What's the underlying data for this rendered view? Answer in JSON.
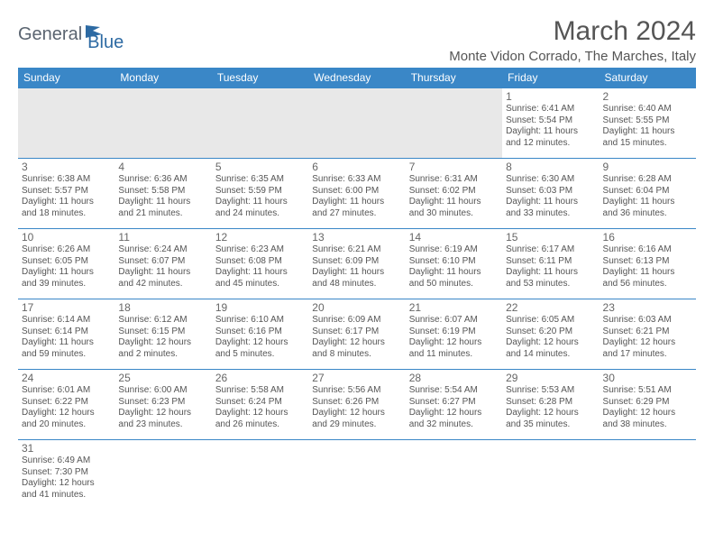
{
  "logo": {
    "general": "General",
    "blue": "Blue"
  },
  "header": {
    "title": "March 2024",
    "location": "Monte Vidon Corrado, The Marches, Italy"
  },
  "colors": {
    "header_bg": "#3a87c7",
    "header_fg": "#ffffff",
    "row_border": "#3a87c7",
    "blank_bg": "#e8e8e8",
    "text": "#555555"
  },
  "weekdays": [
    "Sunday",
    "Monday",
    "Tuesday",
    "Wednesday",
    "Thursday",
    "Friday",
    "Saturday"
  ],
  "days": {
    "1": {
      "sr": "Sunrise: 6:41 AM",
      "ss": "Sunset: 5:54 PM",
      "dl1": "Daylight: 11 hours",
      "dl2": "and 12 minutes."
    },
    "2": {
      "sr": "Sunrise: 6:40 AM",
      "ss": "Sunset: 5:55 PM",
      "dl1": "Daylight: 11 hours",
      "dl2": "and 15 minutes."
    },
    "3": {
      "sr": "Sunrise: 6:38 AM",
      "ss": "Sunset: 5:57 PM",
      "dl1": "Daylight: 11 hours",
      "dl2": "and 18 minutes."
    },
    "4": {
      "sr": "Sunrise: 6:36 AM",
      "ss": "Sunset: 5:58 PM",
      "dl1": "Daylight: 11 hours",
      "dl2": "and 21 minutes."
    },
    "5": {
      "sr": "Sunrise: 6:35 AM",
      "ss": "Sunset: 5:59 PM",
      "dl1": "Daylight: 11 hours",
      "dl2": "and 24 minutes."
    },
    "6": {
      "sr": "Sunrise: 6:33 AM",
      "ss": "Sunset: 6:00 PM",
      "dl1": "Daylight: 11 hours",
      "dl2": "and 27 minutes."
    },
    "7": {
      "sr": "Sunrise: 6:31 AM",
      "ss": "Sunset: 6:02 PM",
      "dl1": "Daylight: 11 hours",
      "dl2": "and 30 minutes."
    },
    "8": {
      "sr": "Sunrise: 6:30 AM",
      "ss": "Sunset: 6:03 PM",
      "dl1": "Daylight: 11 hours",
      "dl2": "and 33 minutes."
    },
    "9": {
      "sr": "Sunrise: 6:28 AM",
      "ss": "Sunset: 6:04 PM",
      "dl1": "Daylight: 11 hours",
      "dl2": "and 36 minutes."
    },
    "10": {
      "sr": "Sunrise: 6:26 AM",
      "ss": "Sunset: 6:05 PM",
      "dl1": "Daylight: 11 hours",
      "dl2": "and 39 minutes."
    },
    "11": {
      "sr": "Sunrise: 6:24 AM",
      "ss": "Sunset: 6:07 PM",
      "dl1": "Daylight: 11 hours",
      "dl2": "and 42 minutes."
    },
    "12": {
      "sr": "Sunrise: 6:23 AM",
      "ss": "Sunset: 6:08 PM",
      "dl1": "Daylight: 11 hours",
      "dl2": "and 45 minutes."
    },
    "13": {
      "sr": "Sunrise: 6:21 AM",
      "ss": "Sunset: 6:09 PM",
      "dl1": "Daylight: 11 hours",
      "dl2": "and 48 minutes."
    },
    "14": {
      "sr": "Sunrise: 6:19 AM",
      "ss": "Sunset: 6:10 PM",
      "dl1": "Daylight: 11 hours",
      "dl2": "and 50 minutes."
    },
    "15": {
      "sr": "Sunrise: 6:17 AM",
      "ss": "Sunset: 6:11 PM",
      "dl1": "Daylight: 11 hours",
      "dl2": "and 53 minutes."
    },
    "16": {
      "sr": "Sunrise: 6:16 AM",
      "ss": "Sunset: 6:13 PM",
      "dl1": "Daylight: 11 hours",
      "dl2": "and 56 minutes."
    },
    "17": {
      "sr": "Sunrise: 6:14 AM",
      "ss": "Sunset: 6:14 PM",
      "dl1": "Daylight: 11 hours",
      "dl2": "and 59 minutes."
    },
    "18": {
      "sr": "Sunrise: 6:12 AM",
      "ss": "Sunset: 6:15 PM",
      "dl1": "Daylight: 12 hours",
      "dl2": "and 2 minutes."
    },
    "19": {
      "sr": "Sunrise: 6:10 AM",
      "ss": "Sunset: 6:16 PM",
      "dl1": "Daylight: 12 hours",
      "dl2": "and 5 minutes."
    },
    "20": {
      "sr": "Sunrise: 6:09 AM",
      "ss": "Sunset: 6:17 PM",
      "dl1": "Daylight: 12 hours",
      "dl2": "and 8 minutes."
    },
    "21": {
      "sr": "Sunrise: 6:07 AM",
      "ss": "Sunset: 6:19 PM",
      "dl1": "Daylight: 12 hours",
      "dl2": "and 11 minutes."
    },
    "22": {
      "sr": "Sunrise: 6:05 AM",
      "ss": "Sunset: 6:20 PM",
      "dl1": "Daylight: 12 hours",
      "dl2": "and 14 minutes."
    },
    "23": {
      "sr": "Sunrise: 6:03 AM",
      "ss": "Sunset: 6:21 PM",
      "dl1": "Daylight: 12 hours",
      "dl2": "and 17 minutes."
    },
    "24": {
      "sr": "Sunrise: 6:01 AM",
      "ss": "Sunset: 6:22 PM",
      "dl1": "Daylight: 12 hours",
      "dl2": "and 20 minutes."
    },
    "25": {
      "sr": "Sunrise: 6:00 AM",
      "ss": "Sunset: 6:23 PM",
      "dl1": "Daylight: 12 hours",
      "dl2": "and 23 minutes."
    },
    "26": {
      "sr": "Sunrise: 5:58 AM",
      "ss": "Sunset: 6:24 PM",
      "dl1": "Daylight: 12 hours",
      "dl2": "and 26 minutes."
    },
    "27": {
      "sr": "Sunrise: 5:56 AM",
      "ss": "Sunset: 6:26 PM",
      "dl1": "Daylight: 12 hours",
      "dl2": "and 29 minutes."
    },
    "28": {
      "sr": "Sunrise: 5:54 AM",
      "ss": "Sunset: 6:27 PM",
      "dl1": "Daylight: 12 hours",
      "dl2": "and 32 minutes."
    },
    "29": {
      "sr": "Sunrise: 5:53 AM",
      "ss": "Sunset: 6:28 PM",
      "dl1": "Daylight: 12 hours",
      "dl2": "and 35 minutes."
    },
    "30": {
      "sr": "Sunrise: 5:51 AM",
      "ss": "Sunset: 6:29 PM",
      "dl1": "Daylight: 12 hours",
      "dl2": "and 38 minutes."
    },
    "31": {
      "sr": "Sunrise: 6:49 AM",
      "ss": "Sunset: 7:30 PM",
      "dl1": "Daylight: 12 hours",
      "dl2": "and 41 minutes."
    }
  },
  "layout": [
    [
      null,
      null,
      null,
      null,
      null,
      "1",
      "2"
    ],
    [
      "3",
      "4",
      "5",
      "6",
      "7",
      "8",
      "9"
    ],
    [
      "10",
      "11",
      "12",
      "13",
      "14",
      "15",
      "16"
    ],
    [
      "17",
      "18",
      "19",
      "20",
      "21",
      "22",
      "23"
    ],
    [
      "24",
      "25",
      "26",
      "27",
      "28",
      "29",
      "30"
    ],
    [
      "31",
      null,
      null,
      null,
      null,
      null,
      null
    ]
  ]
}
